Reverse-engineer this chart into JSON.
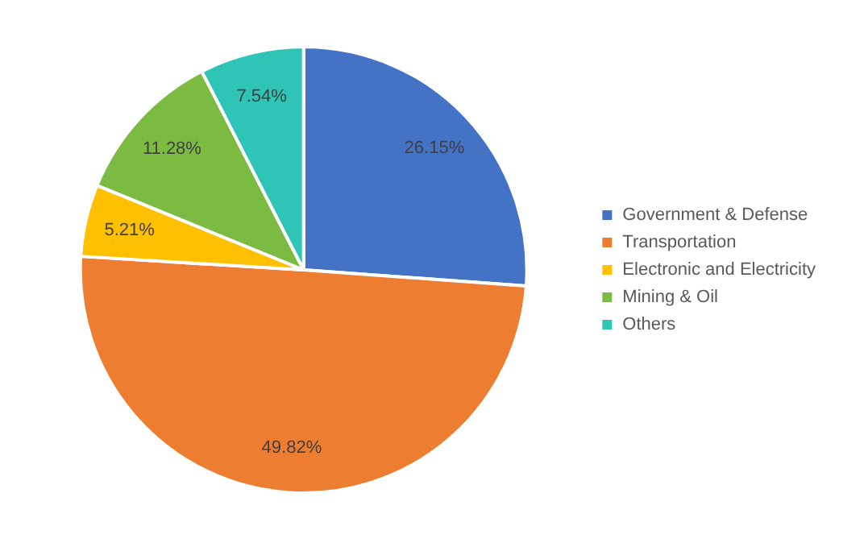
{
  "chart_data": {
    "type": "pie",
    "categories": [
      "Government & Defense",
      "Transportation",
      "Electronic and Electricity",
      "Mining & Oil",
      "Others"
    ],
    "values": [
      26.15,
      49.82,
      5.21,
      11.28,
      7.54
    ],
    "colors": [
      "#4472c4",
      "#ed7d31",
      "#ffc000",
      "#7cbb42",
      "#2ec4b6"
    ],
    "value_labels": [
      "26.15%",
      "49.82%",
      "5.21%",
      "11.28%",
      "7.54%"
    ],
    "legend": "right"
  }
}
